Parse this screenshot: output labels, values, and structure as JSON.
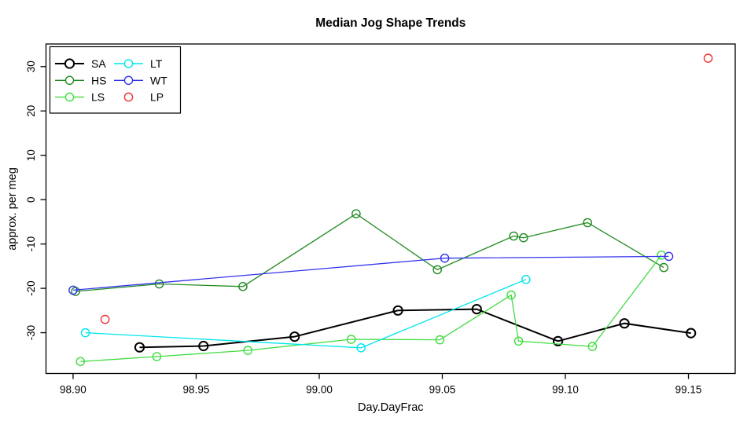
{
  "chart": {
    "title": "Median Jog Shape Trends"
  },
  "chart_data": {
    "type": "line",
    "title": "Median Jog Shape Trends",
    "xlabel": "Day.DayFrac",
    "ylabel": "approx. per meg",
    "xlim": [
      98.889,
      99.169
    ],
    "ylim": [
      -39.2,
      35.1
    ],
    "x_ticks": [
      98.9,
      98.95,
      99.0,
      99.05,
      99.1,
      99.15
    ],
    "x_tick_labels": [
      "98.90",
      "98.95",
      "99.00",
      "99.05",
      "99.10",
      "99.15"
    ],
    "y_ticks": [
      -30,
      -20,
      -10,
      0,
      10,
      20,
      30
    ],
    "y_tick_labels": [
      "-30",
      "-20",
      "-10",
      "0",
      "10",
      "20",
      "30"
    ],
    "grid": false,
    "marker": "open-circle",
    "legend_position": "top-left",
    "legend_columns": [
      [
        "SA",
        "HS",
        "LS"
      ],
      [
        "LT",
        "WT",
        "LP"
      ]
    ],
    "series": [
      {
        "name": "SA",
        "color": "#000000",
        "line": true,
        "line_width": 2,
        "points": [
          [
            98.927,
            -33.3
          ],
          [
            98.953,
            -33.0
          ],
          [
            98.99,
            -30.9
          ],
          [
            99.032,
            -25.0
          ],
          [
            99.064,
            -24.7
          ],
          [
            99.097,
            -31.9
          ],
          [
            99.124,
            -27.9
          ],
          [
            99.151,
            -30.1
          ]
        ]
      },
      {
        "name": "HS",
        "color": "#228B22",
        "line": true,
        "line_width": 1.3,
        "points": [
          [
            98.901,
            -20.7
          ],
          [
            98.935,
            -19.0
          ],
          [
            98.969,
            -19.6
          ],
          [
            99.015,
            -3.2
          ],
          [
            99.048,
            -15.8
          ],
          [
            99.079,
            -8.2
          ],
          [
            99.083,
            -8.6
          ],
          [
            99.109,
            -5.2
          ],
          [
            99.14,
            -15.3
          ]
        ]
      },
      {
        "name": "LS",
        "color": "#42DD42",
        "line": true,
        "line_width": 1.3,
        "points": [
          [
            98.903,
            -36.5
          ],
          [
            98.934,
            -35.4
          ],
          [
            98.971,
            -34.0
          ],
          [
            99.013,
            -31.5
          ],
          [
            99.049,
            -31.6
          ],
          [
            99.078,
            -21.5
          ],
          [
            99.081,
            -31.9
          ],
          [
            99.111,
            -33.1
          ],
          [
            99.139,
            -12.5
          ]
        ]
      },
      {
        "name": "LT",
        "color": "#00E5EE",
        "line": true,
        "line_width": 1.3,
        "points": [
          [
            98.905,
            -30.0
          ],
          [
            99.017,
            -33.4
          ],
          [
            99.084,
            -18.0
          ]
        ]
      },
      {
        "name": "WT",
        "color": "#3333EE",
        "line": true,
        "line_width": 1.3,
        "points": [
          [
            98.9,
            -20.4
          ],
          [
            99.051,
            -13.2
          ],
          [
            99.142,
            -12.8
          ]
        ]
      },
      {
        "name": "LP",
        "color": "#EE3333",
        "line": false,
        "line_width": 1.3,
        "points": [
          [
            98.913,
            -27.0
          ],
          [
            99.158,
            31.9
          ]
        ]
      }
    ]
  }
}
